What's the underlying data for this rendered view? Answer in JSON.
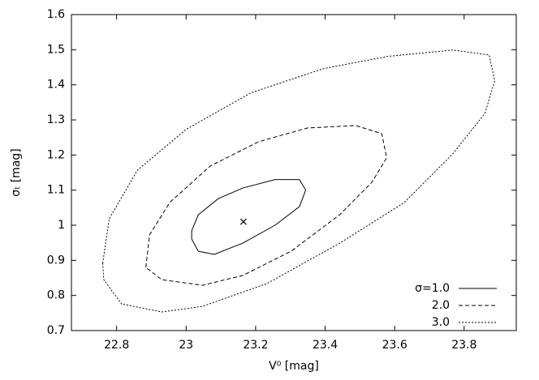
{
  "chart_data": {
    "type": "line",
    "x_label": "V⁰ [mag]",
    "y_label": "σₜ [mag]",
    "xlim": [
      22.67,
      23.95
    ],
    "ylim": [
      0.7,
      1.6
    ],
    "xticks": [
      22.8,
      23,
      23.2,
      23.4,
      23.6,
      23.8
    ],
    "yticks": [
      0.7,
      0.8,
      0.9,
      1,
      1.1,
      1.2,
      1.3,
      1.4,
      1.5,
      1.6
    ],
    "legend": "bottom right",
    "series": [
      {
        "name": "σ=1.0",
        "color": "#000000",
        "dash": "none",
        "x": [
          23.016,
          23.035,
          23.093,
          23.163,
          23.256,
          23.326,
          23.344,
          23.326,
          23.256,
          23.163,
          23.081,
          23.035,
          23.016,
          23.016
        ],
        "values": [
          0.984,
          1.03,
          1.076,
          1.106,
          1.13,
          1.13,
          1.1,
          1.053,
          1.0,
          0.949,
          0.917,
          0.926,
          0.961,
          0.984
        ]
      },
      {
        "name": "2.0",
        "color": "#000000",
        "dash": "5,3",
        "x": [
          22.884,
          22.895,
          22.953,
          23.07,
          23.209,
          23.349,
          23.488,
          23.563,
          23.577,
          23.535,
          23.442,
          23.302,
          23.163,
          23.047,
          22.93,
          22.884
        ],
        "values": [
          0.88,
          0.973,
          1.065,
          1.169,
          1.238,
          1.277,
          1.284,
          1.261,
          1.192,
          1.123,
          1.03,
          0.926,
          0.857,
          0.829,
          0.845,
          0.88
        ]
      },
      {
        "name": "3.0",
        "color": "#000000",
        "dash": "2,2",
        "x": [
          22.76,
          22.779,
          22.86,
          23.0,
          23.186,
          23.395,
          23.581,
          23.767,
          23.872,
          23.888,
          23.86,
          23.767,
          23.628,
          23.442,
          23.233,
          23.047,
          22.93,
          22.814,
          22.763,
          22.76
        ],
        "values": [
          0.892,
          1.019,
          1.157,
          1.273,
          1.377,
          1.446,
          1.481,
          1.499,
          1.485,
          1.411,
          1.319,
          1.203,
          1.065,
          0.949,
          0.834,
          0.769,
          0.753,
          0.776,
          0.845,
          0.892
        ]
      }
    ],
    "points": {
      "x": [
        23.165
      ],
      "values": [
        1.01
      ]
    }
  }
}
